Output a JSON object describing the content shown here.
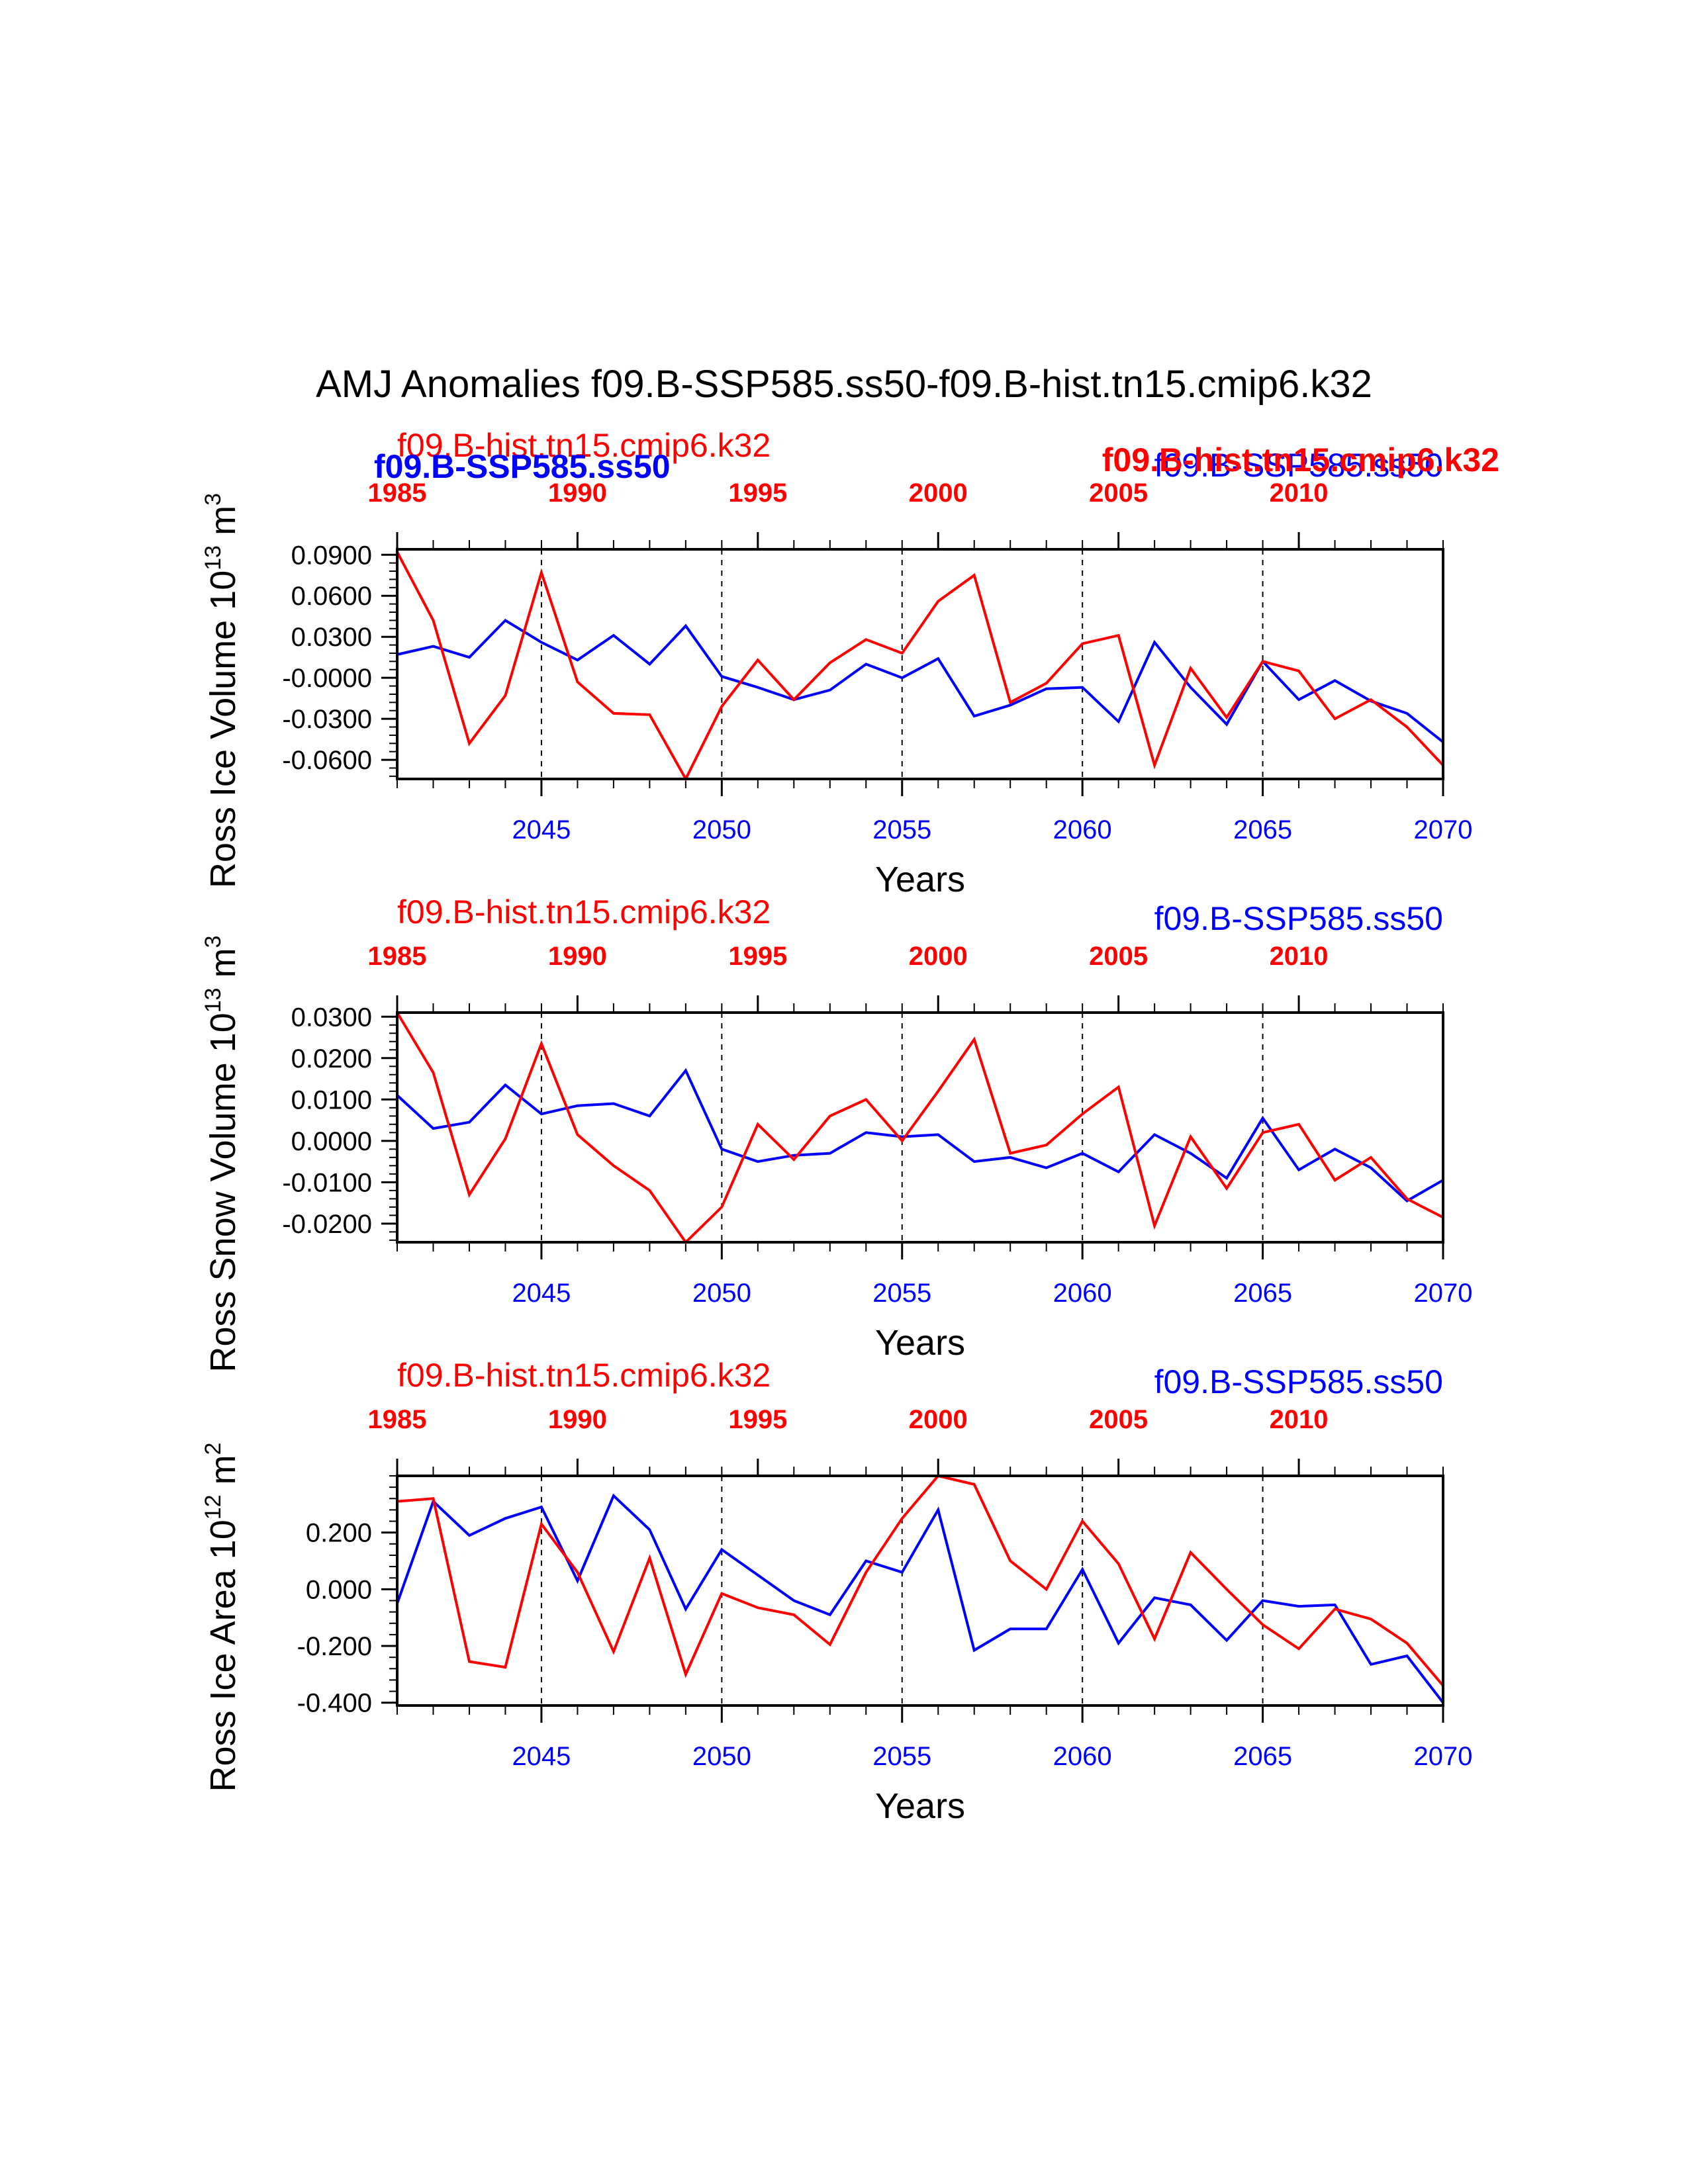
{
  "title": "AMJ Anomalies f09.B-SSP585.ss50-f09.B-hist.tn15.cmip6.k32",
  "colors": {
    "future": "#0000ff",
    "hist": "#ff0000",
    "axis": "#000000"
  },
  "legend": {
    "future": "f09.B-SSP585.ss50",
    "hist": "f09.B-hist.tn15.cmip6.k32"
  },
  "chart_data": [
    {
      "type": "line",
      "ylabel": "Ross Ice Volume 10",
      "ylabel_exp": "13",
      "ylabel_unit": " m",
      "ylabel_unit_exp": "3",
      "xlabel": "Years",
      "yticks": [
        "0.0900",
        "0.0600",
        "0.0300",
        "-0.0000",
        "-0.0300",
        "-0.0600"
      ],
      "ytick_values": [
        0.09,
        0.06,
        0.03,
        0.0,
        -0.03,
        -0.06
      ],
      "ylim": [
        -0.074,
        0.094
      ],
      "bottom_axis": {
        "ticks": [
          "2045",
          "2050",
          "2055",
          "2060",
          "2065",
          "2070"
        ],
        "xlim": [
          2041,
          2070
        ]
      },
      "top_axis": {
        "ticks": [
          "1985",
          "1990",
          "1995",
          "2000",
          "2005",
          "2010"
        ],
        "xlim": [
          1985,
          2014
        ]
      },
      "series": [
        {
          "name": "f09.B-SSP585.ss50",
          "x": [
            2041,
            2042,
            2043,
            2044,
            2045,
            2046,
            2047,
            2048,
            2049,
            2050,
            2051,
            2052,
            2053,
            2054,
            2055,
            2056,
            2057,
            2058,
            2059,
            2060,
            2061,
            2062,
            2063,
            2064,
            2065,
            2066,
            2067,
            2068,
            2069,
            2070
          ],
          "values": [
            0.017,
            0.023,
            0.015,
            0.042,
            0.026,
            0.013,
            0.031,
            0.01,
            0.038,
            0.001,
            -0.007,
            -0.016,
            -0.009,
            0.01,
            0.0,
            0.014,
            -0.028,
            -0.02,
            -0.008,
            -0.007,
            -0.032,
            0.026,
            -0.007,
            -0.034,
            0.012,
            -0.016,
            -0.002,
            -0.017,
            -0.026,
            -0.047
          ]
        },
        {
          "name": "f09.B-hist.tn15.cmip6.k32",
          "x": [
            1985,
            1986,
            1987,
            1988,
            1989,
            1990,
            1991,
            1992,
            1993,
            1994,
            1995,
            1996,
            1997,
            1998,
            1999,
            2000,
            2001,
            2002,
            2003,
            2004,
            2005,
            2006,
            2007,
            2008,
            2009,
            2010,
            2011,
            2012,
            2013,
            2014
          ],
          "values": [
            0.092,
            0.042,
            -0.048,
            -0.013,
            0.077,
            -0.003,
            -0.026,
            -0.027,
            -0.074,
            -0.021,
            0.013,
            -0.016,
            0.011,
            0.028,
            0.018,
            0.056,
            0.075,
            -0.018,
            -0.004,
            0.025,
            0.031,
            -0.064,
            0.007,
            -0.029,
            0.012,
            0.005,
            -0.03,
            -0.016,
            -0.036,
            -0.064
          ]
        }
      ]
    },
    {
      "type": "line",
      "ylabel": "Ross Snow Volume 10",
      "ylabel_exp": "13",
      "ylabel_unit": " m",
      "ylabel_unit_exp": "3",
      "xlabel": "Years",
      "yticks": [
        "0.0300",
        "0.0200",
        "0.0100",
        "0.0000",
        "-0.0100",
        "-0.0200"
      ],
      "ytick_values": [
        0.03,
        0.02,
        0.01,
        0.0,
        -0.01,
        -0.02
      ],
      "ylim": [
        -0.0245,
        0.031
      ],
      "bottom_axis": {
        "ticks": [
          "2045",
          "2050",
          "2055",
          "2060",
          "2065",
          "2070"
        ],
        "xlim": [
          2041,
          2070
        ]
      },
      "top_axis": {
        "ticks": [
          "1985",
          "1990",
          "1995",
          "2000",
          "2005",
          "2010"
        ],
        "xlim": [
          1985,
          2014
        ]
      },
      "series": [
        {
          "name": "f09.B-SSP585.ss50",
          "x": [
            2041,
            2042,
            2043,
            2044,
            2045,
            2046,
            2047,
            2048,
            2049,
            2050,
            2051,
            2052,
            2053,
            2054,
            2055,
            2056,
            2057,
            2058,
            2059,
            2060,
            2061,
            2062,
            2063,
            2064,
            2065,
            2066,
            2067,
            2068,
            2069,
            2070
          ],
          "values": [
            0.011,
            0.003,
            0.0045,
            0.0135,
            0.0065,
            0.0085,
            0.009,
            0.006,
            0.017,
            -0.002,
            -0.005,
            -0.0035,
            -0.003,
            0.002,
            0.001,
            0.0015,
            -0.005,
            -0.004,
            -0.0065,
            -0.003,
            -0.0075,
            0.0015,
            -0.003,
            -0.009,
            0.0055,
            -0.007,
            -0.002,
            -0.0065,
            -0.0145,
            -0.0095
          ]
        },
        {
          "name": "f09.B-hist.tn15.cmip6.k32",
          "x": [
            1985,
            1986,
            1987,
            1988,
            1989,
            1990,
            1991,
            1992,
            1993,
            1994,
            1995,
            1996,
            1997,
            1998,
            1999,
            2000,
            2001,
            2002,
            2003,
            2004,
            2005,
            2006,
            2007,
            2008,
            2009,
            2010,
            2011,
            2012,
            2013,
            2014
          ],
          "values": [
            0.031,
            0.0165,
            -0.013,
            0.0005,
            0.0235,
            0.0015,
            -0.006,
            -0.012,
            -0.0245,
            -0.016,
            0.004,
            -0.0045,
            0.006,
            0.01,
            0.0,
            0.012,
            0.0245,
            -0.003,
            -0.001,
            0.0065,
            0.013,
            -0.0205,
            0.001,
            -0.0115,
            0.002,
            0.004,
            -0.0095,
            -0.004,
            -0.014,
            -0.0185
          ]
        }
      ]
    },
    {
      "type": "line",
      "ylabel": "Ross Ice Area 10",
      "ylabel_exp": "12",
      "ylabel_unit": " m",
      "ylabel_unit_exp": "2",
      "xlabel": "Years",
      "yticks": [
        "0.200",
        "0.000",
        "-0.200",
        "-0.400"
      ],
      "ytick_values": [
        0.2,
        0.0,
        -0.2,
        -0.4
      ],
      "ylim": [
        -0.41,
        0.4
      ],
      "bottom_axis": {
        "ticks": [
          "2045",
          "2050",
          "2055",
          "2060",
          "2065",
          "2070"
        ],
        "xlim": [
          2041,
          2070
        ]
      },
      "top_axis": {
        "ticks": [
          "1985",
          "1990",
          "1995",
          "2000",
          "2005",
          "2010"
        ],
        "xlim": [
          1985,
          2014
        ]
      },
      "series": [
        {
          "name": "f09.B-SSP585.ss50",
          "x": [
            2041,
            2042,
            2043,
            2044,
            2045,
            2046,
            2047,
            2048,
            2049,
            2050,
            2051,
            2052,
            2053,
            2054,
            2055,
            2056,
            2057,
            2058,
            2059,
            2060,
            2061,
            2062,
            2063,
            2064,
            2065,
            2066,
            2067,
            2068,
            2069,
            2070
          ],
          "values": [
            -0.05,
            0.31,
            0.19,
            0.25,
            0.29,
            0.03,
            0.33,
            0.21,
            -0.07,
            0.14,
            0.05,
            -0.04,
            -0.09,
            0.1,
            0.06,
            0.28,
            -0.215,
            -0.14,
            -0.14,
            0.07,
            -0.19,
            -0.03,
            -0.055,
            -0.18,
            -0.04,
            -0.06,
            -0.055,
            -0.265,
            -0.235,
            -0.4
          ]
        },
        {
          "name": "f09.B-hist.tn15.cmip6.k32",
          "x": [
            1985,
            1986,
            1987,
            1988,
            1989,
            1990,
            1991,
            1992,
            1993,
            1994,
            1995,
            1996,
            1997,
            1998,
            1999,
            2000,
            2001,
            2002,
            2003,
            2004,
            2005,
            2006,
            2007,
            2008,
            2009,
            2010,
            2011,
            2012,
            2013,
            2014
          ],
          "values": [
            0.31,
            0.32,
            -0.255,
            -0.275,
            0.23,
            0.06,
            -0.22,
            0.11,
            -0.3,
            -0.015,
            -0.065,
            -0.09,
            -0.195,
            0.06,
            0.25,
            0.4,
            0.37,
            0.1,
            0.0,
            0.24,
            0.09,
            -0.175,
            0.13,
            0.0,
            -0.125,
            -0.21,
            -0.07,
            -0.105,
            -0.19,
            -0.34
          ]
        }
      ]
    }
  ]
}
